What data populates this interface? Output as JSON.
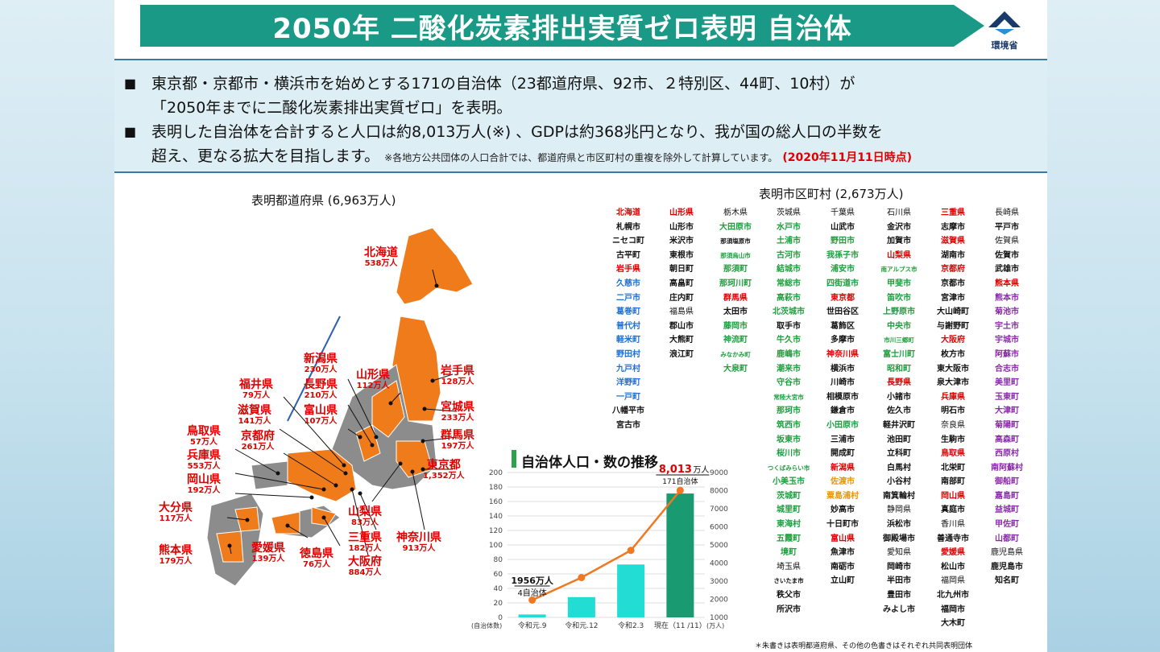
{
  "title": "2050年 二酸化炭素排出実質ゼロ表明 自治体",
  "logo_text": "環境省",
  "summary": {
    "bullet_mark": "■",
    "line1": "東京都・京都市・横浜市を始めとする171の自治体（23都道府県、92市、２特別区、44町、10村）が",
    "line2": "「2050年までに二酸化炭素排出実質ゼロ」を表明。",
    "line3": "表明した自治体を合計すると人口は約8,013万人(※) 、GDPは約368兆円となり、我が国の総人口の半数を",
    "line4": "超え、更なる拡大を目指します。",
    "note": "※各地方公共団体の人口合計では、都道府県と市区町村の重複を除外して計算しています。",
    "date": "(2020年11月11日時点)"
  },
  "prefectures_title": "表明都道府県 (6,963万人)",
  "municipalities_title": "表明市区町村 (2,673万人)",
  "prefectures": [
    {
      "name": "北海道",
      "pop": "538万人"
    },
    {
      "name": "岩手県",
      "pop": "128万人"
    },
    {
      "name": "宮城県",
      "pop": "233万人"
    },
    {
      "name": "山形県",
      "pop": "112万人"
    },
    {
      "name": "新潟県",
      "pop": "230万人"
    },
    {
      "name": "長野県",
      "pop": "210万人"
    },
    {
      "name": "富山県",
      "pop": "107万人"
    },
    {
      "name": "福井県",
      "pop": "79万人"
    },
    {
      "name": "滋賀県",
      "pop": "141万人"
    },
    {
      "name": "京都府",
      "pop": "261万人"
    },
    {
      "name": "群馬県",
      "pop": "197万人"
    },
    {
      "name": "東京都",
      "pop": "1,352万人"
    },
    {
      "name": "鳥取県",
      "pop": "57万人"
    },
    {
      "name": "兵庫県",
      "pop": "553万人"
    },
    {
      "name": "岡山県",
      "pop": "192万人"
    },
    {
      "name": "大分県",
      "pop": "117万人"
    },
    {
      "name": "熊本県",
      "pop": "179万人"
    },
    {
      "name": "愛媛県",
      "pop": "139万人"
    },
    {
      "name": "徳島県",
      "pop": "76万人"
    },
    {
      "name": "大阪府",
      "pop": "884万人"
    },
    {
      "name": "山梨県",
      "pop": "83万人"
    },
    {
      "name": "三重県",
      "pop": "182万人"
    },
    {
      "name": "神奈川県",
      "pop": "913万人"
    }
  ],
  "chart_title": "自治体人口・数の推移",
  "chart_data": {
    "type": "bar",
    "categories": [
      "令和元.9",
      "令和元.12",
      "令和2.3",
      "現在（11 /11）"
    ],
    "series": [
      {
        "name": "自治体数",
        "values": [
          4,
          28,
          73,
          171
        ]
      },
      {
        "name": "人口（万人）",
        "values": [
          1956,
          3200,
          4700,
          8013
        ]
      }
    ],
    "left_axis_ticks": [
      "0",
      "20",
      "40",
      "60",
      "80",
      "100",
      "120",
      "140",
      "160",
      "180",
      "200"
    ],
    "right_axis_ticks": [
      "1000",
      "2000",
      "3000",
      "4000",
      "5000",
      "6000",
      "7000",
      "8000",
      "9000"
    ],
    "left_unit": "(自治体数)",
    "right_unit": "(万人)",
    "ylim_left": [
      0,
      200
    ],
    "ylim_right": [
      1000,
      9000
    ],
    "first_pop_label": "1956万人",
    "first_count_label": "4自治体",
    "last_pop_value": "8,013",
    "last_pop_unit": "万人",
    "last_count_label": "171自治体",
    "colors": {
      "bars": [
        "#22ddd3",
        "#22ddd3",
        "#22ddd3",
        "#1a9a70"
      ],
      "line": "#f07820"
    }
  },
  "municipalities": [
    [
      [
        "北海道",
        "red"
      ],
      [
        "札幌市",
        "black"
      ],
      [
        "ニセコ町",
        "black"
      ],
      [
        "古平町",
        "black"
      ],
      [
        "岩手県",
        "red"
      ],
      [
        "久慈市",
        "blue"
      ],
      [
        "二戸市",
        "blue"
      ],
      [
        "葛巻町",
        "blue"
      ],
      [
        "普代村",
        "blue"
      ],
      [
        "軽米町",
        "blue"
      ],
      [
        "野田村",
        "blue"
      ],
      [
        "九戸村",
        "blue"
      ],
      [
        "洋野町",
        "blue"
      ],
      [
        "一戸町",
        "blue"
      ],
      [
        "八幡平市",
        "black"
      ],
      [
        "宮古市",
        "black"
      ]
    ],
    [
      [
        "山形県",
        "red"
      ],
      [
        "山形市",
        "black"
      ],
      [
        "米沢市",
        "black"
      ],
      [
        "東根市",
        "black"
      ],
      [
        "朝日町",
        "black"
      ],
      [
        "高畠町",
        "black"
      ],
      [
        "庄内町",
        "black"
      ],
      [
        "福島県",
        "plain"
      ],
      [
        "郡山市",
        "black"
      ],
      [
        "大熊町",
        "black"
      ],
      [
        "浪江町",
        "black"
      ]
    ],
    [
      [
        "栃木県",
        "plain"
      ],
      [
        "大田原市",
        "green"
      ],
      [
        "那須塩原市",
        "black",
        "small"
      ],
      [
        "那須烏山市",
        "green",
        "small"
      ],
      [
        "那須町",
        "green"
      ],
      [
        "那珂川町",
        "green"
      ],
      [
        "群馬県",
        "red"
      ],
      [
        "太田市",
        "black"
      ],
      [
        "藤岡市",
        "green"
      ],
      [
        "神流町",
        "green"
      ],
      [
        "みなかみ町",
        "green",
        "small"
      ],
      [
        "大泉町",
        "green"
      ]
    ],
    [
      [
        "茨城県",
        "plain"
      ],
      [
        "水戸市",
        "green"
      ],
      [
        "土浦市",
        "green"
      ],
      [
        "古河市",
        "green"
      ],
      [
        "結城市",
        "green"
      ],
      [
        "常総市",
        "green"
      ],
      [
        "高萩市",
        "green"
      ],
      [
        "北茨城市",
        "green"
      ],
      [
        "取手市",
        "black"
      ],
      [
        "牛久市",
        "green"
      ],
      [
        "鹿嶋市",
        "green"
      ],
      [
        "潮来市",
        "green"
      ],
      [
        "守谷市",
        "green"
      ],
      [
        "常陸大宮市",
        "green",
        "small"
      ],
      [
        "那珂市",
        "green"
      ],
      [
        "筑西市",
        "green"
      ],
      [
        "坂東市",
        "green"
      ],
      [
        "桜川市",
        "green"
      ],
      [
        "つくばみらい市",
        "green",
        "small"
      ],
      [
        "小美玉市",
        "green"
      ],
      [
        "茨城町",
        "green"
      ],
      [
        "城里町",
        "green"
      ],
      [
        "東海村",
        "green"
      ],
      [
        "五霞町",
        "green"
      ],
      [
        "境町",
        "green"
      ],
      [
        "埼玉県",
        "plain"
      ],
      [
        "さいたま市",
        "black",
        "small"
      ],
      [
        "秩父市",
        "black"
      ],
      [
        "所沢市",
        "black"
      ]
    ],
    [
      [
        "千葉県",
        "plain"
      ],
      [
        "山武市",
        "black"
      ],
      [
        "野田市",
        "green"
      ],
      [
        "我孫子市",
        "green"
      ],
      [
        "浦安市",
        "green"
      ],
      [
        "四街道市",
        "green"
      ],
      [
        "東京都",
        "red"
      ],
      [
        "世田谷区",
        "black"
      ],
      [
        "葛飾区",
        "black"
      ],
      [
        "多摩市",
        "black"
      ],
      [
        "神奈川県",
        "red"
      ],
      [
        "横浜市",
        "black"
      ],
      [
        "川崎市",
        "black"
      ],
      [
        "相模原市",
        "black"
      ],
      [
        "鎌倉市",
        "black"
      ],
      [
        "小田原市",
        "green"
      ],
      [
        "三浦市",
        "black"
      ],
      [
        "開成町",
        "black"
      ],
      [
        "新潟県",
        "red"
      ],
      [
        "佐渡市",
        "orange"
      ],
      [
        "粟島浦村",
        "orange"
      ],
      [
        "妙高市",
        "black"
      ],
      [
        "十日町市",
        "black"
      ],
      [
        "富山県",
        "red"
      ],
      [
        "魚津市",
        "black"
      ],
      [
        "南砺市",
        "black"
      ],
      [
        "立山町",
        "black"
      ]
    ],
    [
      [
        "石川県",
        "plain"
      ],
      [
        "金沢市",
        "black"
      ],
      [
        "加賀市",
        "black"
      ],
      [
        "山梨県",
        "red"
      ],
      [
        "南アルプス市",
        "green",
        "small"
      ],
      [
        "甲斐市",
        "green"
      ],
      [
        "笛吹市",
        "green"
      ],
      [
        "上野原市",
        "green"
      ],
      [
        "中央市",
        "green"
      ],
      [
        "市川三郷町",
        "green",
        "small"
      ],
      [
        "富士川町",
        "green"
      ],
      [
        "昭和町",
        "green"
      ],
      [
        "長野県",
        "red"
      ],
      [
        "小諸市",
        "black"
      ],
      [
        "佐久市",
        "black"
      ],
      [
        "軽井沢町",
        "black"
      ],
      [
        "池田町",
        "black"
      ],
      [
        "立科町",
        "black"
      ],
      [
        "白馬村",
        "black"
      ],
      [
        "小谷村",
        "black"
      ],
      [
        "南箕輪村",
        "black"
      ],
      [
        "静岡県",
        "plain"
      ],
      [
        "浜松市",
        "black"
      ],
      [
        "御殿場市",
        "black"
      ],
      [
        "愛知県",
        "plain"
      ],
      [
        "岡崎市",
        "black"
      ],
      [
        "半田市",
        "black"
      ],
      [
        "豊田市",
        "black"
      ],
      [
        "みよし市",
        "black"
      ]
    ],
    [
      [
        "三重県",
        "red"
      ],
      [
        "志摩市",
        "black"
      ],
      [
        "滋賀県",
        "red"
      ],
      [
        "湖南市",
        "black"
      ],
      [
        "京都府",
        "red"
      ],
      [
        "京都市",
        "black"
      ],
      [
        "宮津市",
        "black"
      ],
      [
        "大山崎町",
        "black"
      ],
      [
        "与謝野町",
        "black"
      ],
      [
        "大阪府",
        "red"
      ],
      [
        "枚方市",
        "black"
      ],
      [
        "東大阪市",
        "black"
      ],
      [
        "泉大津市",
        "black"
      ],
      [
        "兵庫県",
        "red"
      ],
      [
        "明石市",
        "black"
      ],
      [
        "奈良県",
        "plain"
      ],
      [
        "生駒市",
        "black"
      ],
      [
        "鳥取県",
        "red"
      ],
      [
        "北栄町",
        "black"
      ],
      [
        "南部町",
        "black"
      ],
      [
        "岡山県",
        "red"
      ],
      [
        "真庭市",
        "black"
      ],
      [
        "香川県",
        "plain"
      ],
      [
        "善通寺市",
        "black"
      ],
      [
        "愛媛県",
        "red"
      ],
      [
        "松山市",
        "black"
      ],
      [
        "福岡県",
        "plain"
      ],
      [
        "北九州市",
        "black"
      ],
      [
        "福岡市",
        "black"
      ],
      [
        "大木町",
        "black"
      ]
    ],
    [
      [
        "長崎県",
        "plain"
      ],
      [
        "平戸市",
        "black"
      ],
      [
        "佐賀県",
        "plain"
      ],
      [
        "佐賀市",
        "black"
      ],
      [
        "武雄市",
        "black"
      ],
      [
        "熊本県",
        "red"
      ],
      [
        "熊本市",
        "purple"
      ],
      [
        "菊池市",
        "purple"
      ],
      [
        "宇土市",
        "purple"
      ],
      [
        "宇城市",
        "purple"
      ],
      [
        "阿蘇市",
        "purple"
      ],
      [
        "合志市",
        "purple"
      ],
      [
        "美里町",
        "purple"
      ],
      [
        "玉東町",
        "purple"
      ],
      [
        "大津町",
        "purple"
      ],
      [
        "菊陽町",
        "purple"
      ],
      [
        "高森町",
        "purple"
      ],
      [
        "西原村",
        "purple"
      ],
      [
        "南阿蘇村",
        "purple"
      ],
      [
        "御船町",
        "purple"
      ],
      [
        "嘉島町",
        "purple"
      ],
      [
        "益城町",
        "purple"
      ],
      [
        "甲佐町",
        "purple"
      ],
      [
        "山都町",
        "purple"
      ],
      [
        "鹿児島県",
        "plain"
      ],
      [
        "鹿児島市",
        "black"
      ],
      [
        "知名町",
        "black"
      ]
    ]
  ],
  "footnote": "＊朱書きは表明都道府県、その他の色書きはそれぞれ共同表明団体"
}
